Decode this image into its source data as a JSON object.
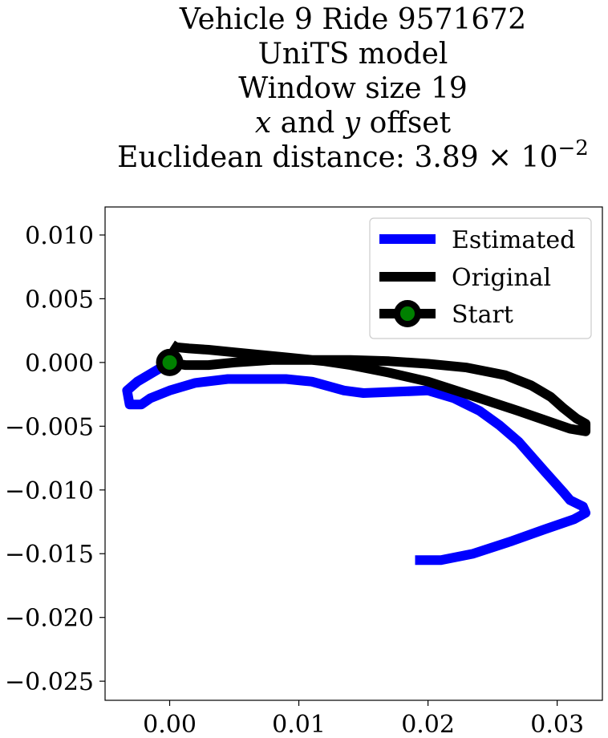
{
  "chart_data": {
    "type": "line",
    "title_lines": [
      "Vehicle 9 Ride 9571672",
      "UniTS model",
      "Window size 19",
      "x and y offset",
      "Euclidean distance: 3.89 × 10⁻²"
    ],
    "title_parts": {
      "var_x": "x",
      "and": " and ",
      "var_y": "y",
      "offset": " offset",
      "dist_prefix": "Euclidean distance: 3.89 × 10",
      "dist_exp": "−2"
    },
    "xlabel": "",
    "ylabel": "",
    "xlim": [
      -0.005,
      0.0335
    ],
    "ylim": [
      -0.0265,
      0.0122
    ],
    "x_ticks": [
      0.0,
      0.01,
      0.02,
      0.03
    ],
    "x_tick_labels": [
      "0.00",
      "0.01",
      "0.02",
      "0.03"
    ],
    "y_ticks": [
      0.01,
      0.005,
      0.0,
      -0.005,
      -0.01,
      -0.015,
      -0.02,
      -0.025
    ],
    "y_tick_labels": [
      "0.010",
      "0.005",
      "0.000",
      "−0.005",
      "−0.010",
      "−0.015",
      "−0.020",
      "−0.025"
    ],
    "grid": false,
    "legend_position": "top-right",
    "series": [
      {
        "name": "Estimated",
        "color": "#0000ff",
        "x": [
          0.0,
          -0.001,
          -0.0025,
          -0.0033,
          -0.0031,
          -0.0022,
          -0.0015,
          0.0,
          0.002,
          0.0045,
          0.006,
          0.009,
          0.011,
          0.0135,
          0.015,
          0.0175,
          0.02,
          0.022,
          0.024,
          0.0255,
          0.027,
          0.029,
          0.0305,
          0.031,
          0.032,
          0.0322,
          0.0313,
          0.029,
          0.0265,
          0.0235,
          0.021,
          0.0195,
          0.019
        ],
        "y": [
          0.0,
          -0.0006,
          -0.0015,
          -0.0022,
          -0.0033,
          -0.0033,
          -0.0028,
          -0.0022,
          -0.0016,
          -0.0013,
          -0.0013,
          -0.0013,
          -0.0015,
          -0.0022,
          -0.0024,
          -0.0023,
          -0.0022,
          -0.0028,
          -0.0038,
          -0.0049,
          -0.0062,
          -0.0085,
          -0.0102,
          -0.0108,
          -0.0113,
          -0.0118,
          -0.0123,
          -0.0131,
          -0.014,
          -0.015,
          -0.0155,
          -0.0155,
          -0.0155
        ]
      },
      {
        "name": "Original",
        "color": "#000000",
        "x": [
          0.0,
          0.0012,
          0.003,
          0.005,
          0.008,
          0.011,
          0.014,
          0.017,
          0.02,
          0.023,
          0.026,
          0.028,
          0.0295,
          0.0305,
          0.0315,
          0.0322,
          0.0322,
          0.031,
          0.029,
          0.027,
          0.024,
          0.02,
          0.017,
          0.014,
          0.012,
          0.009,
          0.007,
          0.005,
          0.003,
          0.0015,
          0.0005,
          0.0002
        ],
        "y": [
          0.0,
          -0.0002,
          -0.0002,
          0.0,
          0.0002,
          0.0002,
          0.0002,
          0.0001,
          -0.0001,
          -0.0004,
          -0.001,
          -0.0018,
          -0.0027,
          -0.0036,
          -0.0044,
          -0.0048,
          -0.0054,
          -0.0052,
          -0.0045,
          -0.0038,
          -0.0028,
          -0.0015,
          -0.0008,
          -0.0002,
          0.0001,
          0.0004,
          0.0006,
          0.0008,
          0.001,
          0.0011,
          0.0012,
          0.0014
        ]
      }
    ],
    "start": {
      "name": "Start",
      "x": 0.0,
      "y": 0.0,
      "color": "#000000",
      "face_color": "#008000"
    }
  }
}
